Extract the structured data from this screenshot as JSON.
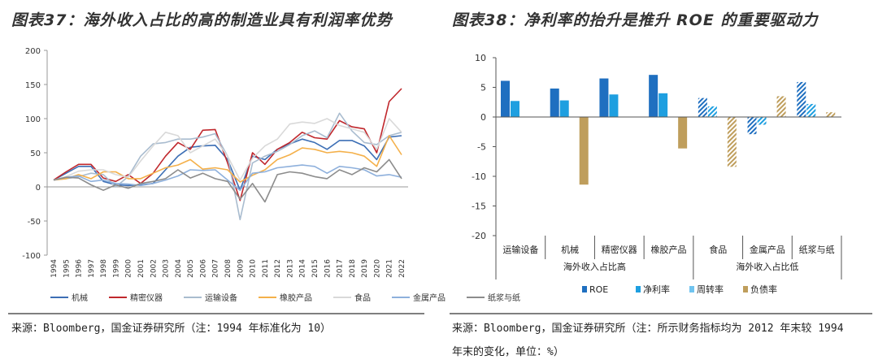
{
  "figure_left": {
    "title": "图表37：海外收入占比的高的制造业具有利润率优势",
    "source": "来源：Bloomberg，国金证券研究所（注：1994 年标准化为 10）"
  },
  "figure_right": {
    "title": "图表38：净利率的抬升是推升 ROE 的重要驱动力",
    "source_line1": "来源：Bloomberg，国金证券研究所（注：所示财务指标均为 2012 年末较 1994",
    "source_line2": "年末的变化，单位：%）"
  },
  "colors": {
    "机械": "#3d6fb5",
    "精密仪器": "#c0282d",
    "运输设备": "#a9bccf",
    "橡胶产品": "#f4b04a",
    "食品": "#d9d9d9",
    "金属产品": "#8eb0dc",
    "纸浆与纸": "#8c8c8c",
    "ROE": "#1f6fc0",
    "净利率": "#1e9fe0",
    "周转率": "#70c4f0",
    "负债率": "#bf9e5c"
  },
  "chart_data": [
    {
      "type": "line",
      "title": "海外收入占比的高的制造业具有利润率优势",
      "xlabel": "",
      "ylabel": "",
      "ylim": [
        -100,
        200
      ],
      "yticks": [
        -100,
        -50,
        0,
        50,
        100,
        150,
        200
      ],
      "x": [
        "1994",
        "1995",
        "1996",
        "1997",
        "1998",
        "1999",
        "2000",
        "2001",
        "2002",
        "2003",
        "2004",
        "2005",
        "2006",
        "2007",
        "2008",
        "2009",
        "2010",
        "2011",
        "2012",
        "2013",
        "2014",
        "2015",
        "2016",
        "2017",
        "2018",
        "2019",
        "2020",
        "2021",
        "2022"
      ],
      "legend_position": "bottom",
      "series": [
        {
          "name": "机械",
          "values": [
            10,
            20,
            30,
            30,
            8,
            3,
            2,
            3,
            5,
            25,
            45,
            58,
            60,
            61,
            40,
            -5,
            45,
            40,
            55,
            63,
            70,
            65,
            55,
            68,
            68,
            60,
            40,
            73,
            75
          ]
        },
        {
          "name": "精密仪器",
          "values": [
            10,
            22,
            33,
            33,
            13,
            8,
            18,
            5,
            20,
            45,
            65,
            55,
            83,
            84,
            35,
            -20,
            50,
            33,
            55,
            65,
            80,
            72,
            70,
            97,
            88,
            85,
            50,
            125,
            144
          ]
        },
        {
          "name": "运输设备",
          "values": [
            10,
            12,
            15,
            20,
            18,
            0,
            15,
            45,
            63,
            65,
            70,
            70,
            73,
            78,
            45,
            -48,
            35,
            45,
            52,
            62,
            75,
            82,
            72,
            108,
            82,
            65,
            62,
            75,
            80
          ]
        },
        {
          "name": "橡胶产品",
          "values": [
            10,
            12,
            18,
            12,
            22,
            22,
            12,
            12,
            20,
            28,
            32,
            40,
            26,
            28,
            25,
            7,
            17,
            25,
            40,
            47,
            57,
            55,
            50,
            52,
            50,
            45,
            30,
            75,
            47
          ]
        },
        {
          "name": "食品",
          "values": [
            10,
            15,
            23,
            25,
            25,
            18,
            14,
            38,
            60,
            80,
            75,
            50,
            60,
            70,
            45,
            10,
            42,
            60,
            70,
            92,
            95,
            93,
            100,
            90,
            85,
            80,
            55,
            100,
            80
          ]
        },
        {
          "name": "金属产品",
          "values": [
            10,
            14,
            16,
            8,
            10,
            5,
            4,
            2,
            5,
            10,
            16,
            25,
            24,
            25,
            10,
            -5,
            20,
            22,
            28,
            30,
            32,
            30,
            20,
            30,
            28,
            25,
            16,
            18,
            14
          ]
        },
        {
          "name": "纸浆与纸",
          "values": [
            10,
            14,
            13,
            3,
            -5,
            3,
            -2,
            5,
            8,
            12,
            25,
            13,
            20,
            12,
            8,
            -18,
            5,
            -22,
            18,
            22,
            20,
            15,
            12,
            25,
            18,
            28,
            22,
            40,
            12
          ]
        }
      ]
    },
    {
      "type": "bar",
      "title": "净利率的抬升是推升 ROE 的重要驱动力",
      "ylim": [
        -20,
        10
      ],
      "yticks": [
        -20,
        -15,
        -10,
        -5,
        0,
        5,
        10
      ],
      "categories": [
        "运输设备",
        "机械",
        "精密仪器",
        "橡胶产品",
        "食品",
        "金属产品",
        "纸浆与纸"
      ],
      "groups": [
        {
          "label": "海外收入占比高",
          "categories": [
            "运输设备",
            "机械",
            "精密仪器",
            "橡胶产品"
          ]
        },
        {
          "label": "海外收入占比低",
          "categories": [
            "食品",
            "金属产品",
            "纸浆与纸"
          ]
        }
      ],
      "legend_position": "bottom",
      "series": [
        {
          "name": "ROE",
          "values": [
            6.1,
            4.8,
            6.5,
            7.1,
            3.2,
            -2.9,
            5.9
          ]
        },
        {
          "name": "净利率",
          "values": [
            2.7,
            2.8,
            3.8,
            4.0,
            1.8,
            -1.3,
            2.2
          ]
        },
        {
          "name": "周转率",
          "values": [
            0,
            0,
            0,
            0,
            0,
            0,
            0
          ]
        },
        {
          "name": "负债率",
          "values": [
            0,
            -11.4,
            0,
            -5.3,
            -8.4,
            3.5,
            0.8
          ]
        }
      ]
    }
  ]
}
